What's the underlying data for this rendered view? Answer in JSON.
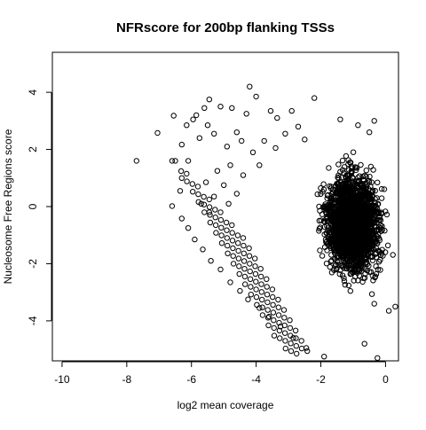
{
  "chart_data": {
    "type": "scatter",
    "title": "NFRscore for 200bp flanking TSSs",
    "xlabel": "log2 mean coverage",
    "ylabel": "Nucleosome Free Regions score",
    "xlim": [
      -10.3,
      0.4
    ],
    "ylim": [
      -5.4,
      5.4
    ],
    "x_ticks": [
      -10,
      -8,
      -6,
      -4,
      -2,
      0
    ],
    "y_ticks": [
      -4,
      -2,
      0,
      2,
      4
    ],
    "marker": "open-circle",
    "color": "#000000",
    "grid": false,
    "legend": "none",
    "series": [
      {
        "points": [
          [
            -7.7,
            1.6
          ],
          [
            -7.05,
            2.58
          ],
          [
            -6.55,
            3.18
          ],
          [
            -6.6,
            1.6
          ],
          [
            -6.6,
            0.02
          ],
          [
            -6.3,
            2.17
          ],
          [
            -6.1,
            1.6
          ],
          [
            -6.3,
            1.0
          ],
          [
            -6.3,
            -0.42
          ],
          [
            -6.35,
            0.55
          ],
          [
            -6.1,
            -0.75
          ],
          [
            -6.15,
            2.85
          ],
          [
            -5.95,
            3.05
          ],
          [
            -5.85,
            3.2
          ],
          [
            -5.6,
            3.45
          ],
          [
            -5.45,
            3.75
          ],
          [
            -5.1,
            3.5
          ],
          [
            -4.75,
            3.45
          ],
          [
            -4.2,
            4.2
          ],
          [
            -4.0,
            3.85
          ],
          [
            -4.3,
            3.25
          ],
          [
            -3.55,
            3.35
          ],
          [
            -3.35,
            3.1
          ],
          [
            -2.9,
            3.35
          ],
          [
            -2.2,
            3.8
          ],
          [
            -5.75,
            2.4
          ],
          [
            -5.5,
            2.85
          ],
          [
            -5.3,
            2.55
          ],
          [
            -4.9,
            2.1
          ],
          [
            -4.6,
            2.6
          ],
          [
            -4.45,
            2.3
          ],
          [
            -4.8,
            1.45
          ],
          [
            -5.2,
            1.25
          ],
          [
            -5.55,
            0.85
          ],
          [
            -5.0,
            0.75
          ],
          [
            -5.7,
            0.1
          ],
          [
            -5.45,
            -0.2
          ],
          [
            -5.3,
            0.35
          ],
          [
            -4.85,
            0.1
          ],
          [
            -4.6,
            0.45
          ],
          [
            -4.4,
            1.1
          ],
          [
            -4.1,
            1.9
          ],
          [
            -3.9,
            1.45
          ],
          [
            -3.75,
            2.3
          ],
          [
            -3.4,
            2.05
          ],
          [
            -3.1,
            2.55
          ],
          [
            -2.7,
            2.8
          ],
          [
            -2.5,
            2.35
          ],
          [
            -1.4,
            3.05
          ],
          [
            -0.85,
            2.85
          ],
          [
            -0.5,
            2.6
          ],
          [
            -0.35,
            3.0
          ],
          [
            -5.9,
            -1.15
          ],
          [
            -5.65,
            -1.5
          ],
          [
            -5.4,
            -1.9
          ],
          [
            -5.1,
            -2.2
          ],
          [
            -4.8,
            -2.65
          ],
          [
            -4.5,
            -2.95
          ],
          [
            -4.25,
            -3.25
          ],
          [
            -3.9,
            -3.55
          ],
          [
            -3.6,
            -3.85
          ],
          [
            -3.25,
            -4.2
          ],
          [
            -2.85,
            -4.6
          ],
          [
            -2.45,
            -4.95
          ],
          [
            -1.9,
            -5.25
          ],
          [
            -0.65,
            -4.8
          ],
          [
            -0.25,
            -5.3
          ],
          [
            0.1,
            -3.65
          ],
          [
            -0.35,
            -3.4
          ],
          [
            0.3,
            -3.5
          ]
        ]
      }
    ]
  }
}
